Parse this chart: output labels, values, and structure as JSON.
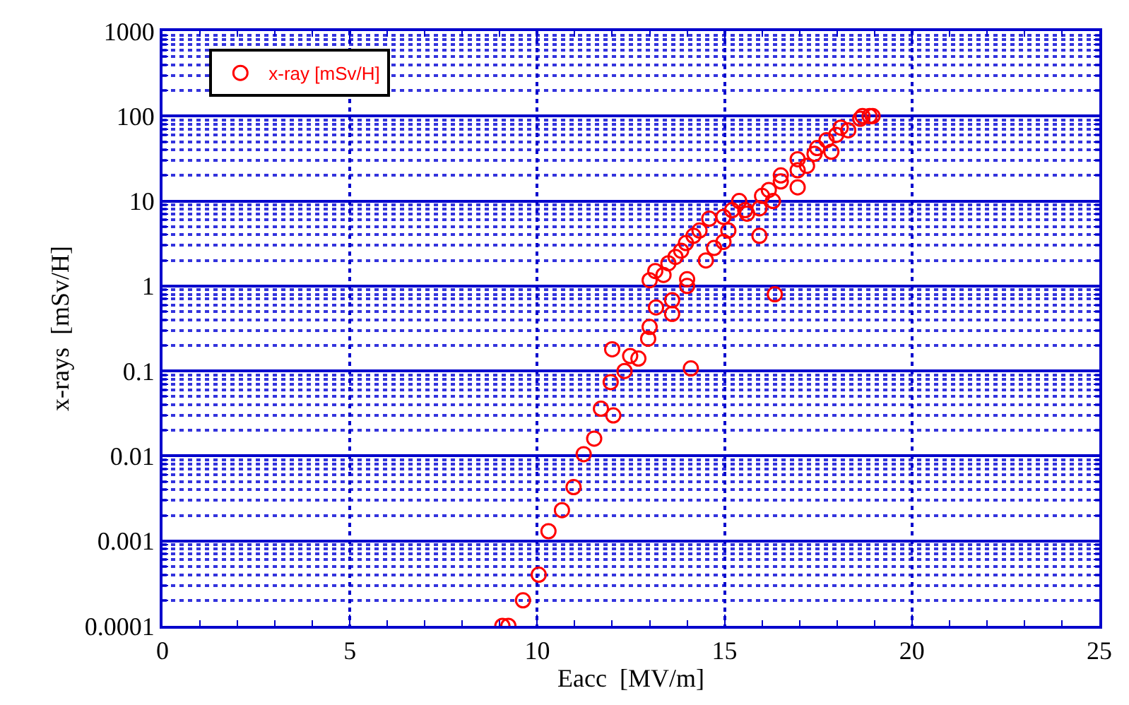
{
  "chart_data": {
    "type": "scatter",
    "xlabel": "Eacc  [MV/m]",
    "ylabel": "x-rays  [mSv/H]",
    "log": "y",
    "grid": true,
    "legend": "top left",
    "marker": "circle",
    "xlim": [
      0,
      25
    ],
    "ylim": [
      0.0001,
      1000
    ],
    "xticks": [
      0,
      {
        "value": 1,
        "label": null
      },
      {
        "value": 2,
        "label": null
      },
      {
        "value": 3,
        "label": null
      },
      {
        "value": 4,
        "label": null
      },
      5,
      {
        "value": 6,
        "label": null
      },
      {
        "value": 7,
        "label": null
      },
      {
        "value": 8,
        "label": null
      },
      {
        "value": 9,
        "label": null
      },
      10,
      {
        "value": 11,
        "label": null
      },
      {
        "value": 12,
        "label": null
      },
      {
        "value": 13,
        "label": null
      },
      {
        "value": 14,
        "label": null
      },
      15,
      {
        "value": 16,
        "label": null
      },
      {
        "value": 17,
        "label": null
      },
      {
        "value": 18,
        "label": null
      },
      {
        "value": 19,
        "label": null
      },
      20,
      {
        "value": 21,
        "label": null
      },
      {
        "value": 22,
        "label": null
      },
      {
        "value": 23,
        "label": null
      },
      {
        "value": 24,
        "label": null
      },
      25
    ],
    "yticks": [
      0.0001,
      {
        "value": 0.0002,
        "label": null
      },
      {
        "value": 0.0003,
        "label": null
      },
      {
        "value": 0.0004,
        "label": null
      },
      {
        "value": 0.0005,
        "label": null
      },
      {
        "value": 0.0006,
        "label": null
      },
      {
        "value": 0.0007,
        "label": null
      },
      {
        "value": 0.0008,
        "label": null
      },
      {
        "value": 0.0009,
        "label": null
      },
      0.001,
      {
        "value": 0.002,
        "label": null
      },
      {
        "value": 0.003,
        "label": null
      },
      {
        "value": 0.004,
        "label": null
      },
      {
        "value": 0.005,
        "label": null
      },
      {
        "value": 0.006,
        "label": null
      },
      {
        "value": 0.007,
        "label": null
      },
      {
        "value": 0.008,
        "label": null
      },
      {
        "value": 0.009,
        "label": null
      },
      0.01,
      {
        "value": 0.02,
        "label": null
      },
      {
        "value": 0.03,
        "label": null
      },
      {
        "value": 0.04,
        "label": null
      },
      {
        "value": 0.05,
        "label": null
      },
      {
        "value": 0.06,
        "label": null
      },
      {
        "value": 0.07,
        "label": null
      },
      {
        "value": 0.08,
        "label": null
      },
      {
        "value": 0.09,
        "label": null
      },
      0.1,
      {
        "value": 0.2,
        "label": null
      },
      {
        "value": 0.3,
        "label": null
      },
      {
        "value": 0.4,
        "label": null
      },
      {
        "value": 0.5,
        "label": null
      },
      {
        "value": 0.6,
        "label": null
      },
      {
        "value": 0.7,
        "label": null
      },
      {
        "value": 0.8,
        "label": null
      },
      {
        "value": 0.9,
        "label": null
      },
      1,
      {
        "value": 2,
        "label": null
      },
      {
        "value": 3,
        "label": null
      },
      {
        "value": 4,
        "label": null
      },
      {
        "value": 5,
        "label": null
      },
      {
        "value": 6,
        "label": null
      },
      {
        "value": 7,
        "label": null
      },
      {
        "value": 8,
        "label": null
      },
      {
        "value": 9,
        "label": null
      },
      10,
      {
        "value": 20,
        "label": null
      },
      {
        "value": 30,
        "label": null
      },
      {
        "value": 40,
        "label": null
      },
      {
        "value": 50,
        "label": null
      },
      {
        "value": 60,
        "label": null
      },
      {
        "value": 70,
        "label": null
      },
      {
        "value": 80,
        "label": null
      },
      {
        "value": 90,
        "label": null
      },
      100,
      {
        "value": 200,
        "label": null
      },
      {
        "value": 300,
        "label": null
      },
      {
        "value": 400,
        "label": null
      },
      {
        "value": 500,
        "label": null
      },
      {
        "value": 600,
        "label": null
      },
      {
        "value": 700,
        "label": null
      },
      {
        "value": 800,
        "label": null
      },
      {
        "value": 900,
        "label": null
      },
      1000
    ],
    "series": [
      {
        "name": "x-ray [mSv/H]",
        "color": "#ff0000",
        "x": [
          9.07,
          9.23,
          9.62,
          10.04,
          10.3,
          10.66,
          10.97,
          11.24,
          11.52,
          11.7,
          12.03,
          11.96,
          12.33,
          12.0,
          12.48,
          12.7,
          14.1,
          12.96,
          13.0,
          13.17,
          13.6,
          13.6,
          14.0,
          14.0,
          13.0,
          16.34,
          13.15,
          13.37,
          13.5,
          13.69,
          13.84,
          13.97,
          14.17,
          14.33,
          14.5,
          14.72,
          14.97,
          15.1,
          14.59,
          14.97,
          15.2,
          15.39,
          15.6,
          15.55,
          15.93,
          15.93,
          16.0,
          16.29,
          16.18,
          16.5,
          16.5,
          16.95,
          16.95,
          17.2,
          16.95,
          17.4,
          17.47,
          17.85,
          17.72,
          17.98,
          18.1,
          18.3,
          18.62,
          18.87,
          18.95,
          18.68
        ],
        "values": [
          0.0001,
          0.0001,
          0.0002,
          0.0004,
          0.0013,
          0.0023,
          0.0043,
          0.0105,
          0.016,
          0.036,
          0.03,
          0.074,
          0.1,
          0.18,
          0.15,
          0.14,
          0.107,
          0.24,
          0.33,
          0.56,
          0.47,
          0.68,
          1.0,
          1.2,
          1.17,
          0.8,
          1.5,
          1.35,
          1.85,
          2.2,
          2.6,
          3.2,
          3.9,
          4.5,
          2.0,
          2.8,
          3.3,
          4.5,
          6.2,
          6.5,
          7.8,
          10,
          7.1,
          7.8,
          3.9,
          8.2,
          11.5,
          10,
          13.5,
          17,
          20,
          14.5,
          23,
          26,
          31,
          36,
          42,
          38,
          52,
          60,
          73,
          68,
          93,
          100,
          100,
          100
        ]
      }
    ]
  }
}
